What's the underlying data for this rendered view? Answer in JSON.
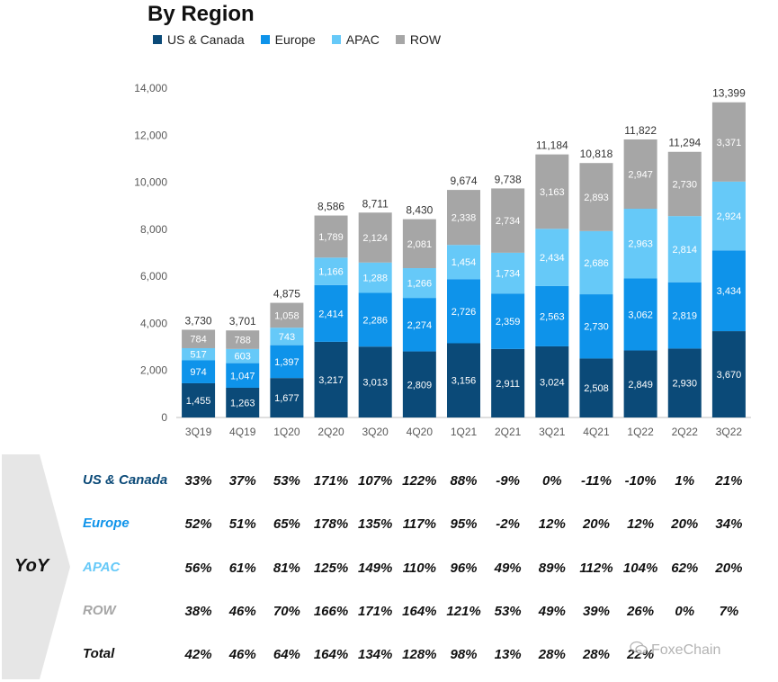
{
  "chart_data": {
    "type": "bar",
    "stacked": true,
    "title": "By Region",
    "xlabel": "",
    "ylabel": "",
    "ylim": [
      0,
      14000
    ],
    "yticks": [
      0,
      2000,
      4000,
      6000,
      8000,
      10000,
      12000,
      14000
    ],
    "ytick_labels": [
      "0",
      "2,000",
      "4,000",
      "6,000",
      "8,000",
      "10,000",
      "12,000",
      "14,000"
    ],
    "categories": [
      "3Q19",
      "4Q19",
      "1Q20",
      "2Q20",
      "3Q20",
      "4Q20",
      "1Q21",
      "2Q21",
      "3Q21",
      "4Q21",
      "1Q22",
      "2Q22",
      "3Q22"
    ],
    "series": [
      {
        "name": "US & Canada",
        "color": "#0b4a78",
        "label_color": "#ffffff",
        "values": [
          1455,
          1263,
          1677,
          3217,
          3013,
          2809,
          3156,
          2911,
          3024,
          2508,
          2849,
          2930,
          3670
        ],
        "labels": [
          "1,455",
          "1,263",
          "1,677",
          "3,217",
          "3,013",
          "2,809",
          "3,156",
          "2,911",
          "3,024",
          "2,508",
          "2,849",
          "2,930",
          "3,670"
        ]
      },
      {
        "name": "Europe",
        "color": "#0e93ea",
        "label_color": "#ffffff",
        "values": [
          974,
          1047,
          1397,
          2414,
          2286,
          2274,
          2726,
          2359,
          2563,
          2730,
          3062,
          2819,
          3434
        ],
        "labels": [
          "974",
          "1,047",
          "1,397",
          "2,414",
          "2,286",
          "2,274",
          "2,726",
          "2,359",
          "2,563",
          "2,730",
          "3,062",
          "2,819",
          "3,434"
        ]
      },
      {
        "name": "APAC",
        "color": "#66c9f8",
        "label_color": "#ffffff",
        "values": [
          517,
          603,
          743,
          1166,
          1288,
          1266,
          1454,
          1734,
          2434,
          2686,
          2963,
          2814,
          2924
        ],
        "labels": [
          "517",
          "603",
          "743",
          "1,166",
          "1,288",
          "1,266",
          "1,454",
          "1,734",
          "2,434",
          "2,686",
          "2,963",
          "2,814",
          "2,924"
        ]
      },
      {
        "name": "ROW",
        "color": "#a6a6a6",
        "label_color": "#ffffff",
        "values": [
          784,
          788,
          1058,
          1789,
          2124,
          2081,
          2338,
          2734,
          3163,
          2893,
          2947,
          2730,
          3371
        ],
        "labels": [
          "784",
          "788",
          "1,058",
          "1,789",
          "2,124",
          "2,081",
          "2,338",
          "2,734",
          "3,163",
          "2,893",
          "2,947",
          "2,730",
          "3,371"
        ]
      }
    ],
    "totals": [
      3730,
      3701,
      4875,
      8586,
      8711,
      8430,
      9674,
      9738,
      11184,
      10818,
      11822,
      11294,
      13399
    ],
    "total_labels": [
      "3,730",
      "3,701",
      "4,875",
      "8,586",
      "8,711",
      "8,430",
      "9,674",
      "9,738",
      "11,184",
      "10,818",
      "11,822",
      "11,294",
      "13,399"
    ],
    "legend_position": "top-left"
  },
  "yoy": {
    "label": "YoY",
    "rows": [
      {
        "name": "US & Canada",
        "color": "#0b4a78",
        "values": [
          "33%",
          "37%",
          "53%",
          "171%",
          "107%",
          "122%",
          "88%",
          "-9%",
          "0%",
          "-11%",
          "-10%",
          "1%",
          "21%"
        ]
      },
      {
        "name": "Europe",
        "color": "#0e93ea",
        "values": [
          "52%",
          "51%",
          "65%",
          "178%",
          "135%",
          "117%",
          "95%",
          "-2%",
          "12%",
          "20%",
          "12%",
          "20%",
          "34%"
        ]
      },
      {
        "name": "APAC",
        "color": "#66c9f8",
        "values": [
          "56%",
          "61%",
          "81%",
          "125%",
          "149%",
          "110%",
          "96%",
          "49%",
          "89%",
          "112%",
          "104%",
          "62%",
          "20%"
        ]
      },
      {
        "name": "ROW",
        "color": "#a6a6a6",
        "values": [
          "38%",
          "46%",
          "70%",
          "166%",
          "171%",
          "164%",
          "121%",
          "53%",
          "49%",
          "39%",
          "26%",
          "0%",
          "7%"
        ]
      },
      {
        "name": "Total",
        "color": "#111111",
        "values": [
          "42%",
          "46%",
          "64%",
          "164%",
          "134%",
          "128%",
          "98%",
          "13%",
          "28%",
          "28%",
          "22%",
          "",
          ""
        ]
      }
    ]
  },
  "watermark": {
    "text": "FoxeChain",
    "icon": "wechat-icon"
  }
}
